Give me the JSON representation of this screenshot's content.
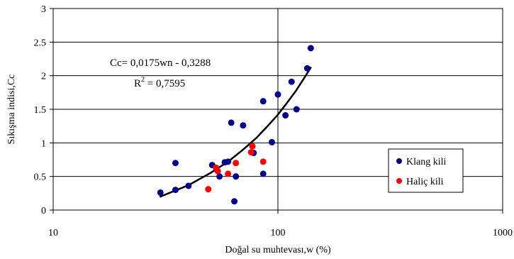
{
  "chart_data": {
    "type": "scatter",
    "xlabel": "Doğal su muhtevası,w (%)",
    "ylabel": "Sıkışma indisi,Cc",
    "x_scale": "log",
    "xlim": [
      10,
      1000
    ],
    "ylim": [
      0,
      3
    ],
    "x_ticks": [
      "10",
      "100",
      "1000"
    ],
    "y_ticks": [
      "0",
      "0.5",
      "1",
      "1.5",
      "2",
      "2.5",
      "3"
    ],
    "grid": true,
    "legend_position": "right",
    "annotation": {
      "equation": "Cc= 0,0175wn - 0,3288",
      "r2_prefix": "R",
      "r2_exponent": "2",
      "r2_value": " = 0,7595"
    },
    "series": [
      {
        "name": "Klang kili",
        "color": "#00008b",
        "points": [
          [
            30,
            0.26
          ],
          [
            35,
            0.7
          ],
          [
            35,
            0.3
          ],
          [
            40,
            0.36
          ],
          [
            51,
            0.67
          ],
          [
            55,
            0.5
          ],
          [
            58,
            0.71
          ],
          [
            60,
            0.72
          ],
          [
            62,
            1.3
          ],
          [
            64,
            0.13
          ],
          [
            65,
            0.5
          ],
          [
            70,
            1.26
          ],
          [
            78,
            0.85
          ],
          [
            86,
            1.62
          ],
          [
            86,
            0.54
          ],
          [
            94,
            1.01
          ],
          [
            100,
            1.72
          ],
          [
            108,
            1.41
          ],
          [
            115,
            1.91
          ],
          [
            121,
            1.5
          ],
          [
            135,
            2.11
          ],
          [
            140,
            2.41
          ]
        ]
      },
      {
        "name": "Haliç kili",
        "color": "#ff0000",
        "points": [
          [
            49,
            0.31
          ],
          [
            53,
            0.63
          ],
          [
            54,
            0.58
          ],
          [
            60,
            0.54
          ],
          [
            65,
            0.7
          ],
          [
            76,
            0.86
          ],
          [
            77,
            0.95
          ],
          [
            86,
            0.72
          ]
        ]
      }
    ],
    "trendline": {
      "color": "#000000",
      "points": [
        [
          30,
          0.2
        ],
        [
          40,
          0.37
        ],
        [
          50,
          0.55
        ],
        [
          60,
          0.72
        ],
        [
          70,
          0.9
        ],
        [
          80,
          1.07
        ],
        [
          90,
          1.25
        ],
        [
          100,
          1.42
        ],
        [
          110,
          1.6
        ],
        [
          120,
          1.77
        ],
        [
          130,
          1.95
        ],
        [
          140,
          2.12
        ]
      ]
    }
  }
}
